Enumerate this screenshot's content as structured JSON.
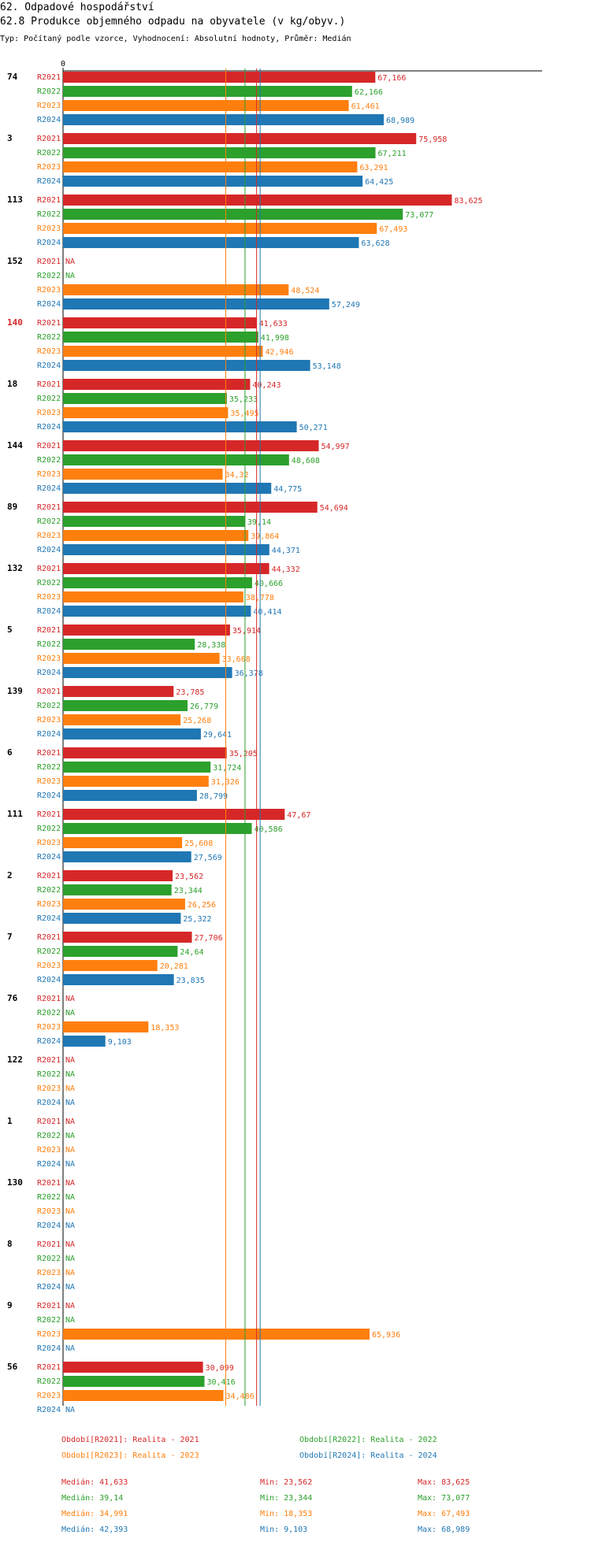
{
  "header": {
    "section": "62. Odpadové hospodářství",
    "title": "62.8 Produkce objemného odpadu na obyvatele (v kg/obyv.)",
    "subtitle": "Typ: Počítaný podle vzorce, Vyhodnocení: Absolutní hodnoty, Průměr: Medián"
  },
  "colors": {
    "R2021": "#d62728",
    "R2022": "#2ca02c",
    "R2023": "#ff7f0e",
    "R2024": "#1f77b4"
  },
  "chart_data": {
    "type": "bar",
    "orientation": "horizontal",
    "x_axis_label": "0",
    "xlim": [
      0,
      84
    ],
    "series_names": [
      "R2021",
      "R2022",
      "R2023",
      "R2024"
    ],
    "na_label": "NA",
    "highlighted_group": "140",
    "groups": [
      {
        "id": "74",
        "values": [
          67.166,
          62.166,
          61.461,
          68.989
        ],
        "labels": [
          "67,166",
          "62,166",
          "61,461",
          "68,989"
        ]
      },
      {
        "id": "3",
        "values": [
          75.958,
          67.211,
          63.291,
          64.425
        ],
        "labels": [
          "75,958",
          "67,211",
          "63,291",
          "64,425"
        ]
      },
      {
        "id": "113",
        "values": [
          83.625,
          73.077,
          67.493,
          63.628
        ],
        "labels": [
          "83,625",
          "73,077",
          "67,493",
          "63,628"
        ]
      },
      {
        "id": "152",
        "values": [
          null,
          null,
          48.524,
          57.249
        ],
        "labels": [
          null,
          null,
          "48,524",
          "57,249"
        ]
      },
      {
        "id": "140",
        "values": [
          41.633,
          41.998,
          42.946,
          53.148
        ],
        "labels": [
          "41,633",
          "41,998",
          "42,946",
          "53,148"
        ]
      },
      {
        "id": "18",
        "values": [
          40.243,
          35.233,
          35.495,
          50.271
        ],
        "labels": [
          "40,243",
          "35,233",
          "35,495",
          "50,271"
        ]
      },
      {
        "id": "144",
        "values": [
          54.997,
          48.608,
          34.32,
          44.775
        ],
        "labels": [
          "54,997",
          "48,608",
          "34,32",
          "44,775"
        ]
      },
      {
        "id": "89",
        "values": [
          54.694,
          39.14,
          39.864,
          44.371
        ],
        "labels": [
          "54,694",
          "39,14",
          "39,864",
          "44,371"
        ]
      },
      {
        "id": "132",
        "values": [
          44.332,
          40.666,
          38.778,
          40.414
        ],
        "labels": [
          "44,332",
          "40,666",
          "38,778",
          "40,414"
        ]
      },
      {
        "id": "5",
        "values": [
          35.914,
          28.338,
          33.668,
          36.378
        ],
        "labels": [
          "35,914",
          "28,338",
          "33,668",
          "36,378"
        ]
      },
      {
        "id": "139",
        "values": [
          23.785,
          26.779,
          25.268,
          29.641
        ],
        "labels": [
          "23,785",
          "26,779",
          "25,268",
          "29,641"
        ]
      },
      {
        "id": "6",
        "values": [
          35.205,
          31.724,
          31.326,
          28.799
        ],
        "labels": [
          "35,205",
          "31,724",
          "31,326",
          "28,799"
        ]
      },
      {
        "id": "111",
        "values": [
          47.67,
          40.586,
          25.608,
          27.569
        ],
        "labels": [
          "47,67",
          "40,586",
          "25,608",
          "27,569"
        ]
      },
      {
        "id": "2",
        "values": [
          23.562,
          23.344,
          26.256,
          25.322
        ],
        "labels": [
          "23,562",
          "23,344",
          "26,256",
          "25,322"
        ]
      },
      {
        "id": "7",
        "values": [
          27.706,
          24.64,
          20.281,
          23.835
        ],
        "labels": [
          "27,706",
          "24,64",
          "20,281",
          "23,835"
        ]
      },
      {
        "id": "76",
        "values": [
          null,
          null,
          18.353,
          9.103
        ],
        "labels": [
          null,
          null,
          "18,353",
          "9,103"
        ]
      },
      {
        "id": "122",
        "values": [
          null,
          null,
          null,
          null
        ],
        "labels": [
          null,
          null,
          null,
          null
        ]
      },
      {
        "id": "1",
        "values": [
          null,
          null,
          null,
          null
        ],
        "labels": [
          null,
          null,
          null,
          null
        ]
      },
      {
        "id": "130",
        "values": [
          null,
          null,
          null,
          null
        ],
        "labels": [
          null,
          null,
          null,
          null
        ]
      },
      {
        "id": "8",
        "values": [
          null,
          null,
          null,
          null
        ],
        "labels": [
          null,
          null,
          null,
          null
        ]
      },
      {
        "id": "9",
        "values": [
          null,
          null,
          65.936,
          null
        ],
        "labels": [
          null,
          null,
          "65,936",
          null
        ]
      },
      {
        "id": "56",
        "values": [
          30.099,
          30.416,
          34.486,
          null
        ],
        "labels": [
          "30,099",
          "30,416",
          "34,486",
          null
        ]
      }
    ],
    "median_lines": [
      41.633,
      39.14,
      34.991,
      42.393
    ]
  },
  "legend": {
    "periods": [
      "Období[R2021]: Realita - 2021",
      "Období[R2022]: Realita - 2022",
      "Období[R2023]: Realita - 2023",
      "Období[R2024]: Realita - 2024"
    ],
    "stats": [
      {
        "median": "Medián: 41,633",
        "min": "Min: 23,562",
        "max": "Max: 83,625"
      },
      {
        "median": "Medián: 39,14",
        "min": "Min: 23,344",
        "max": "Max: 73,077"
      },
      {
        "median": "Medián: 34,991",
        "min": "Min: 18,353",
        "max": "Max: 67,493"
      },
      {
        "median": "Medián: 42,393",
        "min": "Min: 9,103",
        "max": "Max: 68,989"
      }
    ]
  }
}
